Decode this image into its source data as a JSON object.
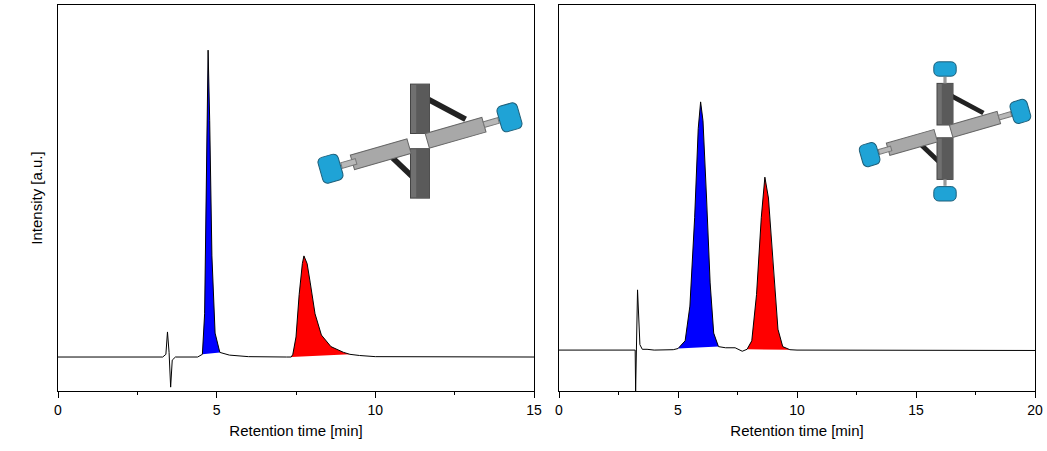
{
  "chart_data": [
    {
      "type": "line",
      "x_label": "Retention time [min]",
      "y_label": "Intensity [a.u.]",
      "xlim": [
        0,
        15
      ],
      "xticks": [
        0,
        5,
        10,
        15
      ],
      "ylim": [
        0,
        100
      ],
      "tick_labels": "x",
      "series": [
        {
          "type": "area",
          "color": "#0000ff",
          "x": [
            4.55,
            4.62,
            4.68,
            4.73,
            4.78,
            4.85,
            4.95,
            5.1
          ],
          "values": [
            9.5,
            20,
            60,
            88.3,
            70,
            35,
            15,
            10
          ]
        },
        {
          "type": "area",
          "color": "#ff0000",
          "x": [
            7.35,
            7.4,
            7.5,
            7.6,
            7.7,
            7.75,
            7.85,
            7.95,
            8.1,
            8.3,
            8.6,
            9,
            9.2
          ],
          "values": [
            8.8,
            9.5,
            14,
            25,
            33,
            35,
            33,
            28,
            20,
            14.5,
            11.5,
            10,
            9.5
          ]
        },
        {
          "type": "line",
          "color": "#000000",
          "x": [
            0,
            3.3,
            3.4,
            3.45,
            3.5,
            3.55,
            3.6,
            3.7,
            4.4,
            4.55,
            4.62,
            4.68,
            4.73,
            4.78,
            4.85,
            4.95,
            5.1,
            5.4,
            6,
            7.2,
            7.35,
            7.4,
            7.5,
            7.6,
            7.7,
            7.75,
            7.85,
            7.95,
            8.1,
            8.3,
            8.6,
            9,
            9.2,
            9.5,
            10,
            15
          ],
          "values": [
            8.8,
            8.8,
            9.5,
            15.3,
            10,
            1.0,
            8.0,
            8.8,
            8.8,
            9.5,
            20,
            60,
            88.3,
            70,
            35,
            15,
            10,
            9.3,
            8.9,
            8.8,
            8.8,
            9.5,
            14,
            25,
            33,
            35,
            33,
            28,
            20,
            14.5,
            11.5,
            10,
            9.5,
            9.2,
            8.9,
            8.8
          ]
        }
      ]
    },
    {
      "type": "line",
      "x_label": "Retention time [min]",
      "xlim": [
        0,
        20
      ],
      "xticks": [
        0,
        5,
        10,
        15,
        20
      ],
      "ylim": [
        0,
        100
      ],
      "tick_labels": "x",
      "series": [
        {
          "type": "area",
          "color": "#0000ff",
          "x": [
            5.0,
            5.3,
            5.5,
            5.7,
            5.85,
            5.95,
            6.05,
            6.2,
            6.35,
            6.5,
            6.7
          ],
          "values": [
            11,
            13,
            22,
            45,
            68,
            74.9,
            70,
            50,
            28,
            15,
            11.5
          ]
        },
        {
          "type": "area",
          "color": "#ff0000",
          "x": [
            7.9,
            8.1,
            8.3,
            8.5,
            8.65,
            8.8,
            9.0,
            9.2,
            9.4,
            9.7
          ],
          "values": [
            10.8,
            13,
            25,
            45,
            55.4,
            50,
            32,
            16,
            11.5,
            10.7
          ]
        },
        {
          "type": "line",
          "color": "#000000",
          "x": [
            0,
            3.2,
            3.22,
            3.3,
            3.4,
            3.5,
            3.7,
            4,
            4.8,
            5.0,
            5.3,
            5.5,
            5.7,
            5.85,
            5.95,
            6.05,
            6.2,
            6.35,
            6.5,
            6.7,
            7.0,
            7.4,
            7.7,
            7.9,
            8.1,
            8.3,
            8.5,
            8.65,
            8.8,
            9.0,
            9.2,
            9.4,
            9.7,
            10,
            20
          ],
          "values": [
            10.6,
            10.6,
            0,
            26.2,
            12,
            10.8,
            10.8,
            10.6,
            10.7,
            11,
            13,
            22,
            45,
            68,
            74.9,
            70,
            50,
            28,
            15,
            11.5,
            11.2,
            11.2,
            10.3,
            10.8,
            13,
            25,
            45,
            55.4,
            50,
            32,
            16,
            11.5,
            10.7,
            10.6,
            10.5
          ]
        }
      ]
    }
  ]
}
